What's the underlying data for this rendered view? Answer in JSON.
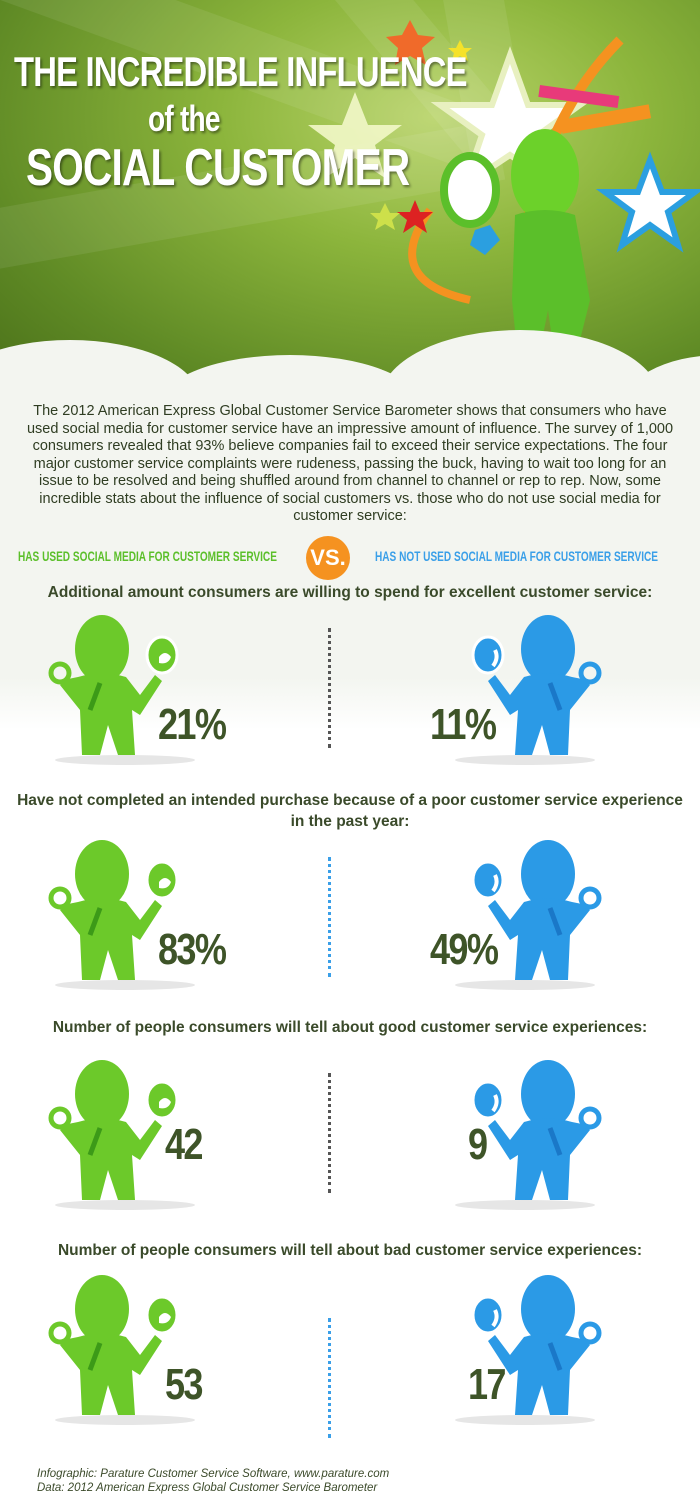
{
  "header": {
    "title_line1": "THE INCREDIBLE INFLUENCE",
    "title_line2": "of the",
    "title_line3": "SOCIAL CUSTOMER"
  },
  "intro": "The 2012 American Express Global Customer Service Barometer shows that consumers who have used social media for customer service have an impressive amount of influence. The survey of 1,000 consumers revealed that 93% believe companies fail to exceed their service expectations. The four major customer service complaints were rudeness, passing the buck, having to wait too long for an issue to be resolved and being shuffled around from channel to channel or rep to rep. Now, some incredible stats about the influence of social customers vs. those who do not use social media for customer service:",
  "legend": {
    "used": "HAS USED SOCIAL MEDIA FOR CUSTOMER SERVICE",
    "vs": "VS.",
    "not_used": "HAS NOT USED SOCIAL MEDIA FOR CUSTOMER SERVICE"
  },
  "colors": {
    "used": "#5bbf2a",
    "not_used": "#2b97e6",
    "vs": "#f59220",
    "number": "#3e5428"
  },
  "stats": [
    {
      "question": "Additional amount consumers are willing to spend for excellent customer service:",
      "used": "21%",
      "not_used": "11%"
    },
    {
      "question": "Have not completed an intended purchase because of a poor customer service experience in the past year:",
      "used": "83%",
      "not_used": "49%"
    },
    {
      "question": "Number of people consumers will tell about good customer service experiences:",
      "used": "42",
      "not_used": "9"
    },
    {
      "question": "Number of people consumers will tell about bad customer service experiences:",
      "used": "53",
      "not_used": "17"
    }
  ],
  "credits": {
    "line1": "Infographic: Parature Customer Service Software, www.parature.com",
    "line2": "Data: 2012 American Express Global Customer Service Barometer"
  }
}
